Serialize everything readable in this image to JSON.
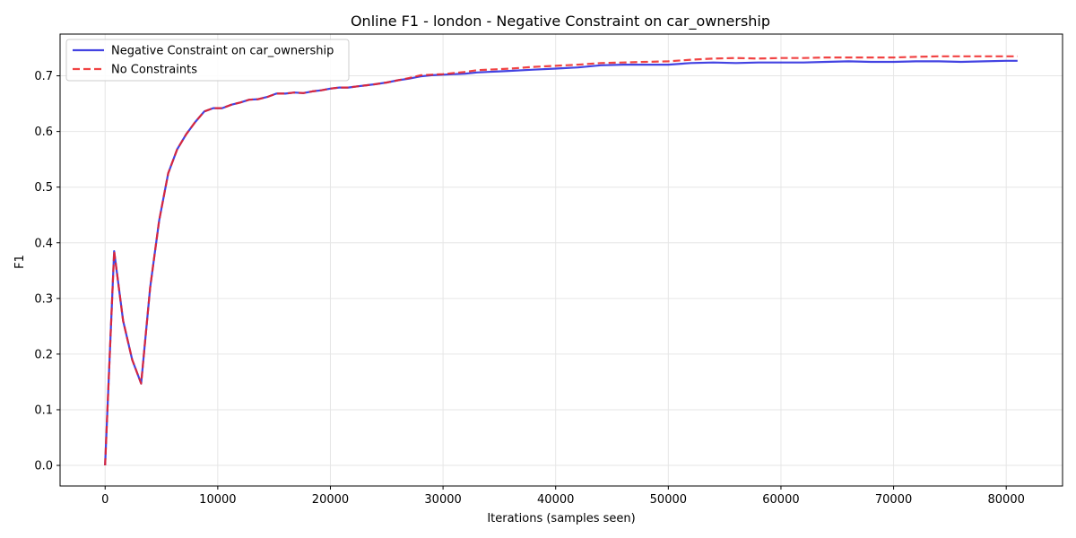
{
  "chart_data": {
    "type": "line",
    "title": "Online F1 - london - Negative Constraint on car_ownership",
    "xlabel": "Iterations (samples seen)",
    "ylabel": "F1",
    "xlim": [
      -4000,
      85000
    ],
    "ylim": [
      -0.037,
      0.775
    ],
    "x_ticks": [
      0,
      10000,
      20000,
      30000,
      40000,
      50000,
      60000,
      70000,
      80000
    ],
    "x_tick_labels": [
      "0",
      "10000",
      "20000",
      "30000",
      "40000",
      "50000",
      "60000",
      "70000",
      "80000"
    ],
    "y_ticks": [
      0.0,
      0.1,
      0.2,
      0.3,
      0.4,
      0.5,
      0.6,
      0.7
    ],
    "y_tick_labels": [
      "0.0",
      "0.1",
      "0.2",
      "0.3",
      "0.4",
      "0.5",
      "0.6",
      "0.7"
    ],
    "grid": true,
    "legend_position": "top-left",
    "series": [
      {
        "name": "Negative Constraint on car_ownership",
        "color": "#2222dd",
        "style": "solid",
        "x": [
          0,
          800,
          1600,
          2400,
          3200,
          4000,
          4800,
          5600,
          6400,
          7200,
          8000,
          8800,
          9600,
          10400,
          11200,
          12000,
          12800,
          13600,
          14400,
          15200,
          16000,
          16800,
          17600,
          18400,
          19200,
          20000,
          20800,
          21600,
          22400,
          23200,
          24000,
          25000,
          26000,
          27000,
          28000,
          29000,
          30000,
          31000,
          32000,
          33000,
          34000,
          35000,
          36000,
          38000,
          40000,
          42000,
          44000,
          46000,
          48000,
          50000,
          52000,
          54000,
          56000,
          58000,
          60000,
          62000,
          64000,
          66000,
          68000,
          70000,
          72000,
          74000,
          76000,
          78000,
          80000,
          81000
        ],
        "values": [
          0.0,
          0.385,
          0.26,
          0.19,
          0.147,
          0.32,
          0.44,
          0.525,
          0.568,
          0.595,
          0.617,
          0.636,
          0.642,
          0.642,
          0.648,
          0.652,
          0.657,
          0.658,
          0.662,
          0.668,
          0.668,
          0.67,
          0.669,
          0.672,
          0.674,
          0.677,
          0.679,
          0.679,
          0.681,
          0.683,
          0.685,
          0.688,
          0.692,
          0.695,
          0.699,
          0.701,
          0.702,
          0.703,
          0.704,
          0.706,
          0.707,
          0.708,
          0.709,
          0.711,
          0.713,
          0.715,
          0.719,
          0.72,
          0.72,
          0.72,
          0.723,
          0.724,
          0.723,
          0.724,
          0.724,
          0.724,
          0.725,
          0.726,
          0.725,
          0.725,
          0.726,
          0.726,
          0.725,
          0.726,
          0.727,
          0.727
        ]
      },
      {
        "name": "No Constraints",
        "color": "#ee2222",
        "style": "dashed",
        "x": [
          0,
          800,
          1600,
          2400,
          3200,
          4000,
          4800,
          5600,
          6400,
          7200,
          8000,
          8800,
          9600,
          10400,
          11200,
          12000,
          12800,
          13600,
          14400,
          15200,
          16000,
          16800,
          17600,
          18400,
          19200,
          20000,
          20800,
          21600,
          22400,
          23200,
          24000,
          25000,
          26000,
          27000,
          28000,
          29000,
          30000,
          31000,
          32000,
          33000,
          34000,
          35000,
          36000,
          38000,
          40000,
          42000,
          44000,
          46000,
          48000,
          50000,
          52000,
          54000,
          56000,
          58000,
          60000,
          62000,
          64000,
          66000,
          68000,
          70000,
          72000,
          74000,
          76000,
          78000,
          80000,
          81000
        ],
        "values": [
          0.0,
          0.385,
          0.26,
          0.19,
          0.147,
          0.32,
          0.44,
          0.525,
          0.568,
          0.595,
          0.617,
          0.636,
          0.642,
          0.642,
          0.648,
          0.652,
          0.657,
          0.658,
          0.662,
          0.668,
          0.668,
          0.67,
          0.669,
          0.672,
          0.674,
          0.677,
          0.679,
          0.679,
          0.681,
          0.683,
          0.685,
          0.688,
          0.692,
          0.696,
          0.701,
          0.702,
          0.703,
          0.705,
          0.707,
          0.71,
          0.711,
          0.712,
          0.713,
          0.716,
          0.718,
          0.72,
          0.723,
          0.724,
          0.725,
          0.726,
          0.729,
          0.731,
          0.732,
          0.731,
          0.732,
          0.732,
          0.733,
          0.733,
          0.733,
          0.733,
          0.734,
          0.735,
          0.735,
          0.735,
          0.735,
          0.735
        ]
      }
    ]
  }
}
